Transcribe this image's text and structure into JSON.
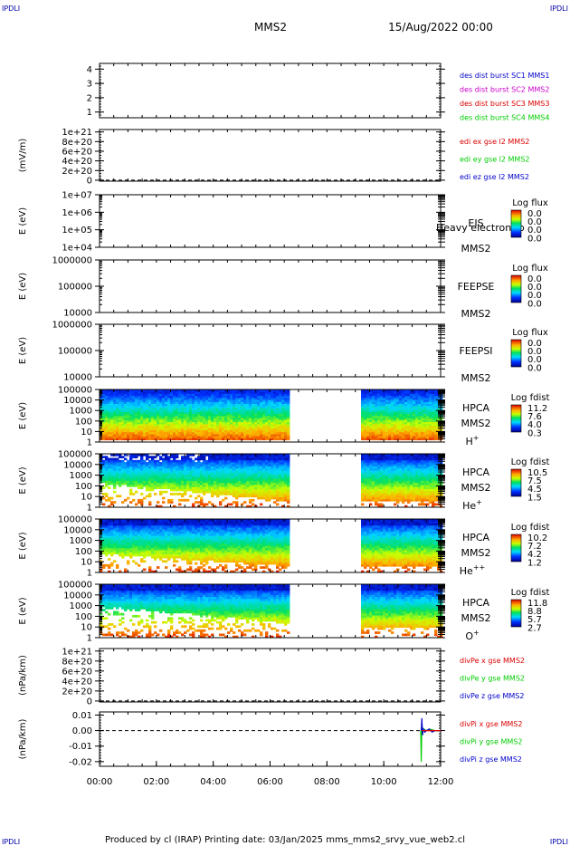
{
  "header": {
    "corner_left_top": "IPDLI",
    "corner_right_top": "IPDLI",
    "corner_left_bottom": "IPDLI",
    "corner_right_bottom": "IPDLI",
    "spacecraft": "MMS2",
    "date": "15/Aug/2022 00:00"
  },
  "footer": {
    "text": "Produced by cl (IRAP)   Printing date: 03/Jan/2025   mms_mms2_srvy_vue_web2.cl"
  },
  "colors": {
    "c1": "#0000cc",
    "c2": "#cc00cc",
    "c3": "#dd0000",
    "c4": "#00cc00",
    "ex": "#dd0000",
    "ey": "#00cc00",
    "ez": "#0000cc"
  },
  "chart_data": [
    {
      "id": "p1",
      "type": "line",
      "yticks": [
        "4",
        "3",
        "2",
        "1"
      ],
      "ylim": [
        0.6,
        4.4
      ],
      "legend": [
        {
          "text": "des dist burst SC1 MMS1",
          "color": "#0000cc"
        },
        {
          "text": "des dist burst SC2 MMS2",
          "color": "#cc00cc"
        },
        {
          "text": "des dist burst SC3 MMS3",
          "color": "#dd0000"
        },
        {
          "text": "des dist burst SC4 MMS4",
          "color": "#00cc00"
        }
      ]
    },
    {
      "id": "p2",
      "type": "line",
      "ylabel": "(mV/m)",
      "yticks": [
        "1e+21",
        "8e+20",
        "6e+20",
        "4e+20",
        "2e+20",
        "0"
      ],
      "ylim": [
        -2e+19,
        1.05e+21
      ],
      "zero_line": true,
      "legend": [
        {
          "text": "edi ex gse l2 MMS2",
          "color": "#dd0000"
        },
        {
          "text": "edi ey gse l2 MMS2",
          "color": "#00cc00"
        },
        {
          "text": "edi ez gse l2 MMS2",
          "color": "#0000cc"
        }
      ]
    },
    {
      "id": "p3",
      "type": "heatmap",
      "yscale": "log",
      "ylabel": "E (eV)",
      "yticks": [
        "1e+07",
        "1e+06",
        "1e+05",
        "1e+04"
      ],
      "ylim": [
        10000,
        10000000
      ],
      "instrument": "EIS",
      "sc": "MMS2",
      "overlay_label": "Heavy electron to",
      "colorbar": {
        "title": "Log flux",
        "labels": [
          "0.0",
          "0.0",
          "0.0",
          "0.0"
        ]
      }
    },
    {
      "id": "p4",
      "type": "heatmap",
      "yscale": "log",
      "ylabel": "E (eV)",
      "yticks": [
        "1000000",
        "100000",
        "10000"
      ],
      "ylim": [
        10000,
        1000000
      ],
      "instrument": "FEEPSE",
      "sc": "MMS2",
      "colorbar": {
        "title": "Log flux",
        "labels": [
          "0.0",
          "0.0",
          "0.0",
          "0.0"
        ]
      }
    },
    {
      "id": "p5",
      "type": "heatmap",
      "yscale": "log",
      "ylabel": "E (eV)",
      "yticks": [
        "1000000",
        "100000",
        "10000"
      ],
      "ylim": [
        10000,
        1000000
      ],
      "instrument": "FEEPSI",
      "sc": "MMS2",
      "colorbar": {
        "title": "Log flux",
        "labels": [
          "0.0",
          "0.0",
          "0.0",
          "0.0"
        ]
      }
    },
    {
      "id": "p6",
      "type": "heatmap",
      "yscale": "log",
      "ylabel": "E (eV)",
      "yticks": [
        "100000",
        "10000",
        "1000",
        "100",
        "10",
        "1"
      ],
      "ylim": [
        1,
        100000
      ],
      "instrument": "HPCA",
      "sc": "MMS2",
      "species": "H",
      "species_sup": "+",
      "colorbar": {
        "title": "Log fdist",
        "labels": [
          "11.2",
          "7.6",
          "4.0",
          "0.3"
        ]
      },
      "data_intervals_hours": [
        [
          0,
          6.6
        ],
        [
          9.2,
          12
        ]
      ],
      "profile": "h"
    },
    {
      "id": "p7",
      "type": "heatmap",
      "yscale": "log",
      "ylabel": "E (eV)",
      "yticks": [
        "100000",
        "10000",
        "1000",
        "100",
        "10",
        "1"
      ],
      "ylim": [
        1,
        100000
      ],
      "instrument": "HPCA",
      "sc": "MMS2",
      "species": "He",
      "species_sup": "+",
      "colorbar": {
        "title": "Log fdist",
        "labels": [
          "10.5",
          "7.5",
          "4.5",
          "1.5"
        ]
      },
      "data_intervals_hours": [
        [
          0,
          6.6
        ],
        [
          9.2,
          12
        ]
      ],
      "profile": "he"
    },
    {
      "id": "p8",
      "type": "heatmap",
      "yscale": "log",
      "ylabel": "E (eV)",
      "yticks": [
        "100000",
        "10000",
        "1000",
        "100",
        "10",
        "1"
      ],
      "ylim": [
        1,
        100000
      ],
      "instrument": "HPCA",
      "sc": "MMS2",
      "species": "He",
      "species_sup": "++",
      "colorbar": {
        "title": "Log fdist",
        "labels": [
          "10.2",
          "7.2",
          "4.2",
          "1.2"
        ]
      },
      "data_intervals_hours": [
        [
          0,
          6.6
        ],
        [
          9.2,
          12
        ]
      ],
      "profile": "hepp"
    },
    {
      "id": "p9",
      "type": "heatmap",
      "yscale": "log",
      "ylabel": "E (eV)",
      "yticks": [
        "100000",
        "10000",
        "1000",
        "100",
        "10",
        "1"
      ],
      "ylim": [
        1,
        100000
      ],
      "instrument": "HPCA",
      "sc": "MMS2",
      "species": "O",
      "species_sup": "+",
      "colorbar": {
        "title": "Log fdist",
        "labels": [
          "11.8",
          "8.8",
          "5.7",
          "2.7"
        ]
      },
      "data_intervals_hours": [
        [
          0,
          6.6
        ],
        [
          9.2,
          12
        ]
      ],
      "profile": "o"
    },
    {
      "id": "p10",
      "type": "line",
      "ylabel": "(nPa/km)",
      "yticks": [
        "1e+21",
        "8e+20",
        "6e+20",
        "4e+20",
        "2e+20",
        "0"
      ],
      "ylim": [
        -2e+19,
        1.05e+21
      ],
      "zero_line": true,
      "legend": [
        {
          "text": "divPe x gse MMS2",
          "color": "#dd0000"
        },
        {
          "text": "divPe y gse MMS2",
          "color": "#00cc00"
        },
        {
          "text": "divPe z gse MMS2",
          "color": "#0000cc"
        }
      ]
    },
    {
      "id": "p11",
      "type": "line",
      "ylabel": "(nPa/km)",
      "yticks": [
        "0.01",
        "0.00",
        "-0.01",
        "-0.02"
      ],
      "ylim": [
        -0.023,
        0.012
      ],
      "zero_line": true,
      "legend": [
        {
          "text": "divPi x gse MMS2",
          "color": "#dd0000"
        },
        {
          "text": "divPi y gse MMS2",
          "color": "#00cc00"
        },
        {
          "text": "divPi z gse MMS2",
          "color": "#0000cc"
        }
      ],
      "series": [
        {
          "name": "divPi y gse MMS2",
          "color": "#00cc00",
          "x_hours": [
            11.3,
            11.32,
            11.34,
            11.36,
            11.4,
            11.5,
            11.6,
            11.8,
            12.0
          ],
          "y": [
            0.0,
            -0.02,
            0.006,
            -0.002,
            0.001,
            0.0,
            0.001,
            0.0,
            0.0
          ]
        },
        {
          "name": "divPi z gse MMS2",
          "color": "#0000cc",
          "x_hours": [
            11.32,
            11.34,
            11.36,
            11.4,
            11.45,
            11.5,
            11.6,
            11.7,
            11.8,
            11.9,
            12.0
          ],
          "y": [
            0.0,
            0.008,
            -0.003,
            0.001,
            -0.001,
            0.0,
            0.001,
            -0.001,
            0.0,
            0.0,
            0.0
          ]
        },
        {
          "name": "divPi x gse MMS2",
          "color": "#dd0000",
          "x_hours": [
            11.34,
            11.4,
            11.5,
            11.7,
            12.0
          ],
          "y": [
            0.0,
            0.0,
            0.0,
            0.0,
            0.0
          ]
        }
      ],
      "xticks": [
        "00:00",
        "02:00",
        "04:00",
        "06:00",
        "08:00",
        "10:00",
        "12:00"
      ],
      "xlim_hours": [
        0,
        12
      ]
    }
  ]
}
